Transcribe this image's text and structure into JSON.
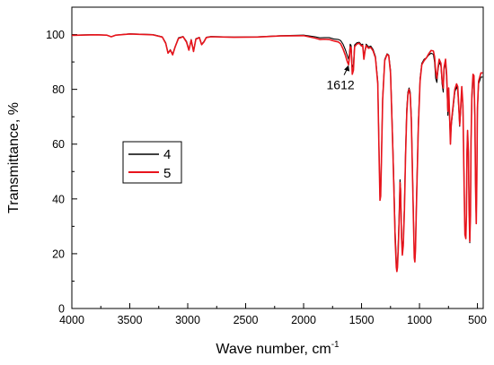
{
  "chart_data": {
    "type": "line",
    "xlabel": "Wave number, cm",
    "xlabel_superscript": "-1",
    "ylabel": "Transmittance, %",
    "xlim": [
      4000,
      450
    ],
    "ylim": [
      0,
      110
    ],
    "x_reversed": true,
    "xticks": [
      4000,
      3500,
      3000,
      2500,
      2000,
      1500,
      1000,
      500
    ],
    "yticks": [
      0,
      20,
      40,
      60,
      80,
      100
    ],
    "grid": false,
    "legend_position": "middle-left",
    "annotation": {
      "text": "1612",
      "x": 1612,
      "y": 89.5
    },
    "series": [
      {
        "name": "4",
        "color": "#000000",
        "points": [
          [
            4000,
            99.8
          ],
          [
            3800,
            100
          ],
          [
            3700,
            99.8
          ],
          [
            3660,
            99.2
          ],
          [
            3620,
            99.8
          ],
          [
            3500,
            100.3
          ],
          [
            3300,
            100
          ],
          [
            3220,
            99.2
          ],
          [
            3190,
            97
          ],
          [
            3170,
            93.3
          ],
          [
            3150,
            94.5
          ],
          [
            3130,
            92.8
          ],
          [
            3110,
            95.5
          ],
          [
            3080,
            98.8
          ],
          [
            3040,
            99.3
          ],
          [
            3010,
            97.5
          ],
          [
            2990,
            94.5
          ],
          [
            2970,
            98.2
          ],
          [
            2950,
            94
          ],
          [
            2930,
            98.5
          ],
          [
            2900,
            99
          ],
          [
            2880,
            96.5
          ],
          [
            2860,
            97.5
          ],
          [
            2840,
            99
          ],
          [
            2800,
            99.3
          ],
          [
            2600,
            99.1
          ],
          [
            2400,
            99.2
          ],
          [
            2200,
            99.6
          ],
          [
            2000,
            99.8
          ],
          [
            1900,
            99.2
          ],
          [
            1860,
            98.8
          ],
          [
            1820,
            98.9
          ],
          [
            1780,
            98.9
          ],
          [
            1740,
            98.4
          ],
          [
            1700,
            98.2
          ],
          [
            1680,
            97.8
          ],
          [
            1660,
            96.5
          ],
          [
            1640,
            94.5
          ],
          [
            1622,
            92.2
          ],
          [
            1612,
            91
          ],
          [
            1605,
            93
          ],
          [
            1598,
            96.5
          ],
          [
            1590,
            96
          ],
          [
            1580,
            88
          ],
          [
            1570,
            89
          ],
          [
            1560,
            96.2
          ],
          [
            1540,
            97
          ],
          [
            1520,
            97.2
          ],
          [
            1500,
            96.2
          ],
          [
            1490,
            96.5
          ],
          [
            1480,
            91.8
          ],
          [
            1470,
            94.5
          ],
          [
            1460,
            96.5
          ],
          [
            1440,
            95.5
          ],
          [
            1420,
            95.8
          ],
          [
            1400,
            94.5
          ],
          [
            1380,
            92
          ],
          [
            1360,
            83
          ],
          [
            1348,
            56
          ],
          [
            1341,
            40.5
          ],
          [
            1335,
            42
          ],
          [
            1330,
            52
          ],
          [
            1318,
            77
          ],
          [
            1300,
            91
          ],
          [
            1280,
            93
          ],
          [
            1265,
            92.5
          ],
          [
            1250,
            87
          ],
          [
            1240,
            74
          ],
          [
            1230,
            60
          ],
          [
            1220,
            45
          ],
          [
            1210,
            28
          ],
          [
            1200,
            17.5
          ],
          [
            1195,
            14.5
          ],
          [
            1190,
            16
          ],
          [
            1183,
            24
          ],
          [
            1175,
            35
          ],
          [
            1168,
            47
          ],
          [
            1163,
            44
          ],
          [
            1155,
            28
          ],
          [
            1148,
            21
          ],
          [
            1140,
            25
          ],
          [
            1130,
            38
          ],
          [
            1120,
            58
          ],
          [
            1110,
            73
          ],
          [
            1100,
            79
          ],
          [
            1090,
            80.5
          ],
          [
            1080,
            79
          ],
          [
            1070,
            70
          ],
          [
            1060,
            50
          ],
          [
            1052,
            34
          ],
          [
            1045,
            20
          ],
          [
            1040,
            17.5
          ],
          [
            1035,
            22
          ],
          [
            1025,
            42
          ],
          [
            1010,
            68
          ],
          [
            995,
            84
          ],
          [
            980,
            89.5
          ],
          [
            960,
            91
          ],
          [
            940,
            91.5
          ],
          [
            920,
            92.5
          ],
          [
            900,
            93.2
          ],
          [
            880,
            92.8
          ],
          [
            870,
            90
          ],
          [
            860,
            84
          ],
          [
            850,
            82.5
          ],
          [
            840,
            87
          ],
          [
            830,
            90
          ],
          [
            815,
            88.5
          ],
          [
            805,
            82
          ],
          [
            795,
            79
          ],
          [
            788,
            87
          ],
          [
            775,
            90
          ],
          [
            765,
            83
          ],
          [
            755,
            70.5
          ],
          [
            748,
            79
          ],
          [
            740,
            68
          ],
          [
            733,
            62
          ],
          [
            725,
            67
          ],
          [
            710,
            73
          ],
          [
            695,
            79
          ],
          [
            680,
            81
          ],
          [
            670,
            79.5
          ],
          [
            660,
            72
          ],
          [
            653,
            66.5
          ],
          [
            645,
            72
          ],
          [
            635,
            80
          ],
          [
            625,
            73
          ],
          [
            615,
            47
          ],
          [
            608,
            28
          ],
          [
            600,
            26.5
          ],
          [
            595,
            35
          ],
          [
            590,
            58
          ],
          [
            585,
            64
          ],
          [
            578,
            58
          ],
          [
            572,
            38
          ],
          [
            566,
            24
          ],
          [
            560,
            35
          ],
          [
            555,
            62
          ],
          [
            548,
            76
          ],
          [
            538,
            84
          ],
          [
            530,
            83
          ],
          [
            522,
            68
          ],
          [
            516,
            45
          ],
          [
            510,
            31
          ],
          [
            505,
            48
          ],
          [
            500,
            72
          ],
          [
            490,
            82
          ],
          [
            470,
            84.5
          ],
          [
            455,
            84.5
          ]
        ]
      },
      {
        "name": "5",
        "color": "#e8141c",
        "points": [
          [
            4000,
            99.7
          ],
          [
            3800,
            99.9
          ],
          [
            3700,
            99.8
          ],
          [
            3660,
            99.2
          ],
          [
            3620,
            99.8
          ],
          [
            3500,
            100.2
          ],
          [
            3300,
            99.9
          ],
          [
            3220,
            99.1
          ],
          [
            3190,
            96.8
          ],
          [
            3170,
            93.2
          ],
          [
            3150,
            94.3
          ],
          [
            3130,
            92.6
          ],
          [
            3110,
            95.3
          ],
          [
            3080,
            98.6
          ],
          [
            3040,
            99.2
          ],
          [
            3010,
            97.2
          ],
          [
            2990,
            94.3
          ],
          [
            2970,
            98
          ],
          [
            2950,
            93.8
          ],
          [
            2930,
            98.3
          ],
          [
            2900,
            98.9
          ],
          [
            2880,
            96.3
          ],
          [
            2860,
            97.3
          ],
          [
            2840,
            98.9
          ],
          [
            2800,
            99.2
          ],
          [
            2600,
            99
          ],
          [
            2400,
            99.1
          ],
          [
            2200,
            99.5
          ],
          [
            2000,
            99.6
          ],
          [
            1900,
            98.7
          ],
          [
            1860,
            98.2
          ],
          [
            1820,
            98.3
          ],
          [
            1780,
            98.2
          ],
          [
            1740,
            97.7
          ],
          [
            1700,
            97.3
          ],
          [
            1680,
            96.6
          ],
          [
            1660,
            94.8
          ],
          [
            1640,
            92.5
          ],
          [
            1622,
            90
          ],
          [
            1612,
            89
          ],
          [
            1605,
            91.5
          ],
          [
            1598,
            95.6
          ],
          [
            1590,
            95
          ],
          [
            1580,
            85.5
          ],
          [
            1570,
            87
          ],
          [
            1560,
            95.5
          ],
          [
            1540,
            96.6
          ],
          [
            1520,
            96.8
          ],
          [
            1500,
            95.8
          ],
          [
            1490,
            96
          ],
          [
            1480,
            91
          ],
          [
            1470,
            94
          ],
          [
            1460,
            96
          ],
          [
            1440,
            95
          ],
          [
            1420,
            95.3
          ],
          [
            1400,
            94
          ],
          [
            1380,
            91.5
          ],
          [
            1360,
            82
          ],
          [
            1348,
            54
          ],
          [
            1341,
            39.5
          ],
          [
            1335,
            41
          ],
          [
            1330,
            51
          ],
          [
            1318,
            76
          ],
          [
            1300,
            90.5
          ],
          [
            1280,
            92.8
          ],
          [
            1265,
            92.2
          ],
          [
            1250,
            86
          ],
          [
            1240,
            72
          ],
          [
            1230,
            58
          ],
          [
            1220,
            42
          ],
          [
            1210,
            25
          ],
          [
            1200,
            15
          ],
          [
            1195,
            13.5
          ],
          [
            1190,
            15
          ],
          [
            1183,
            22
          ],
          [
            1175,
            33
          ],
          [
            1168,
            46
          ],
          [
            1163,
            43
          ],
          [
            1155,
            26
          ],
          [
            1148,
            19.5
          ],
          [
            1140,
            23
          ],
          [
            1130,
            36
          ],
          [
            1120,
            56
          ],
          [
            1110,
            71
          ],
          [
            1100,
            78
          ],
          [
            1090,
            80
          ],
          [
            1080,
            78
          ],
          [
            1070,
            68
          ],
          [
            1060,
            48
          ],
          [
            1052,
            32
          ],
          [
            1045,
            18.5
          ],
          [
            1040,
            17
          ],
          [
            1035,
            21
          ],
          [
            1025,
            40
          ],
          [
            1010,
            66
          ],
          [
            995,
            83
          ],
          [
            980,
            89
          ],
          [
            960,
            90.5
          ],
          [
            940,
            91.5
          ],
          [
            920,
            93
          ],
          [
            900,
            94.2
          ],
          [
            880,
            94
          ],
          [
            870,
            92
          ],
          [
            860,
            86.5
          ],
          [
            850,
            84
          ],
          [
            840,
            88
          ],
          [
            830,
            91
          ],
          [
            815,
            89.5
          ],
          [
            805,
            83.5
          ],
          [
            795,
            80.5
          ],
          [
            788,
            88
          ],
          [
            775,
            91
          ],
          [
            765,
            85
          ],
          [
            755,
            72
          ],
          [
            748,
            80.5
          ],
          [
            740,
            70
          ],
          [
            733,
            60
          ],
          [
            725,
            68
          ],
          [
            710,
            74
          ],
          [
            695,
            80
          ],
          [
            680,
            82
          ],
          [
            670,
            81
          ],
          [
            660,
            73
          ],
          [
            653,
            67
          ],
          [
            645,
            73
          ],
          [
            635,
            81
          ],
          [
            625,
            74
          ],
          [
            615,
            45
          ],
          [
            608,
            27
          ],
          [
            600,
            25.5
          ],
          [
            595,
            34
          ],
          [
            590,
            57
          ],
          [
            585,
            65
          ],
          [
            578,
            57
          ],
          [
            572,
            36
          ],
          [
            566,
            24.5
          ],
          [
            560,
            34
          ],
          [
            555,
            61
          ],
          [
            548,
            78
          ],
          [
            538,
            85.5
          ],
          [
            530,
            85
          ],
          [
            522,
            70
          ],
          [
            516,
            44
          ],
          [
            510,
            31
          ],
          [
            505,
            47
          ],
          [
            500,
            73
          ],
          [
            490,
            83
          ],
          [
            470,
            86
          ],
          [
            455,
            86
          ]
        ]
      }
    ]
  }
}
